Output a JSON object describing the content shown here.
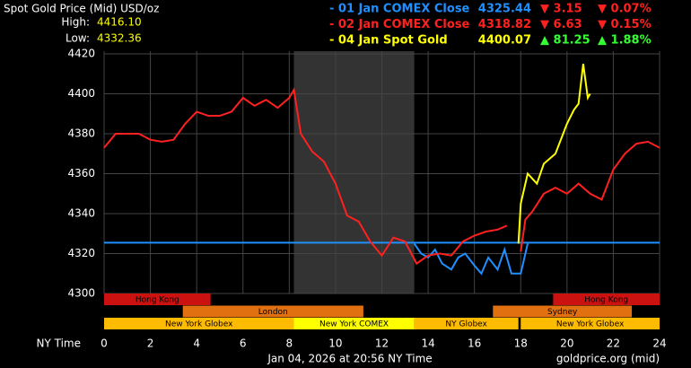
{
  "chart_data": {
    "type": "line",
    "title": "Spot Gold Price (Mid) USD/oz",
    "high_label": "High:",
    "high": "4416.10",
    "low_label": "Low:",
    "low": "4332.36",
    "x_label": "NY Time",
    "timestamp": "Jan 04, 2026 at 20:56 NY Time",
    "source": "goldprice.org (mid)",
    "xlim": [
      0,
      24
    ],
    "xticks": [
      0,
      2,
      4,
      6,
      8,
      10,
      12,
      14,
      16,
      18,
      20,
      22,
      24
    ],
    "ylim": [
      4300,
      4420
    ],
    "yticks": [
      4300,
      4320,
      4340,
      4360,
      4380,
      4400,
      4420
    ],
    "grid": true,
    "closed": [
      8.2,
      13.4
    ],
    "legend": [
      {
        "name": "- 01 Jan COMEX Close",
        "price": "4325.44",
        "change": "▼ 3.15",
        "change_pct": "▼ 0.07%",
        "color": "#1e90ff",
        "change_color": "#ff2020"
      },
      {
        "name": "- 02 Jan COMEX Close",
        "price": "4318.82",
        "change": "▼ 6.63",
        "change_pct": "▼ 0.15%",
        "color": "#ff2020",
        "change_color": "#ff2020"
      },
      {
        "name": "- 04 Jan Spot Gold",
        "price": "4400.07",
        "change": "▲ 81.25",
        "change_pct": "▲ 1.88%",
        "color": "#ffff00",
        "change_color": "#33ff33"
      }
    ],
    "reference": {
      "value": 4325.44,
      "color": "#1e90ff"
    },
    "series": [
      {
        "name": "01 Jan",
        "color": "#1e90ff",
        "x": [
          13.4,
          13.7,
          14,
          14.3,
          14.6,
          15,
          15.3,
          15.6,
          16,
          16.3,
          16.6,
          17,
          17.3,
          17.6,
          18,
          18.3
        ],
        "values": [
          4325,
          4320,
          4318,
          4322,
          4315,
          4312,
          4318,
          4320,
          4314,
          4310,
          4318,
          4312,
          4322,
          4310,
          4310,
          4325
        ]
      },
      {
        "name": "02 Jan",
        "color": "#ff2020",
        "x": [
          0,
          0.5,
          1,
          1.5,
          2,
          2.5,
          3,
          3.5,
          4,
          4.5,
          5,
          5.5,
          6,
          6.5,
          7,
          7.5,
          8,
          8.2,
          8.5,
          9,
          9.5,
          10,
          10.5,
          11,
          11.5,
          12,
          12.5,
          13,
          13.5,
          14,
          14.5,
          15,
          15.5,
          16,
          16.5,
          17,
          17.4,
          null,
          18,
          18.2,
          18.5,
          19,
          19.5,
          20,
          20.5,
          21,
          21.5,
          22,
          22.5,
          23,
          23.5,
          24
        ],
        "values": [
          4373,
          4380,
          4380,
          4380,
          4377,
          4376,
          4377,
          4385,
          4391,
          4389,
          4389,
          4391,
          4398,
          4394,
          4397,
          4393,
          4398,
          4402,
          4380,
          4371,
          4366,
          4355,
          4339,
          4336,
          4326,
          4319,
          4328,
          4326,
          4315,
          4319,
          4320,
          4319,
          4326,
          4329,
          4331,
          4332,
          4334,
          null,
          4321,
          4337,
          4341,
          4350,
          4353,
          4350,
          4355,
          4350,
          4347,
          4362,
          4370,
          4375,
          4376,
          4373
        ]
      },
      {
        "name": "04 Jan",
        "color": "#ffff00",
        "x": [
          17.9,
          18,
          18.3,
          18.7,
          19,
          19.5,
          20,
          20.3,
          20.5,
          20.7,
          20.9,
          21
        ],
        "values": [
          4325,
          4345,
          4360,
          4355,
          4365,
          4370,
          4385,
          4392,
          4395,
          4415,
          4398,
          4400
        ]
      }
    ],
    "sessions": [
      [
        {
          "label": "Hong Kong",
          "start": 0,
          "end": 4.6,
          "color": "#cc1111"
        },
        {
          "label": "Hong Kong",
          "start": 19.4,
          "end": 24,
          "color": "#cc1111"
        }
      ],
      [
        {
          "label": "London",
          "start": 3.4,
          "end": 11.2,
          "color": "#e07010"
        },
        {
          "label": "Sydney",
          "start": 16.8,
          "end": 22.8,
          "color": "#e07010"
        }
      ],
      [
        {
          "label": "New York Globex",
          "start": 0,
          "end": 8.2,
          "color": "#ffbb00"
        },
        {
          "label": "New York COMEX",
          "start": 8.2,
          "end": 13.4,
          "color": "#ffff00"
        },
        {
          "label": "NY Globex",
          "start": 13.4,
          "end": 17.9,
          "color": "#ffbb00"
        },
        {
          "label": "New York Globex",
          "start": 18,
          "end": 24,
          "color": "#ffbb00"
        }
      ]
    ]
  }
}
